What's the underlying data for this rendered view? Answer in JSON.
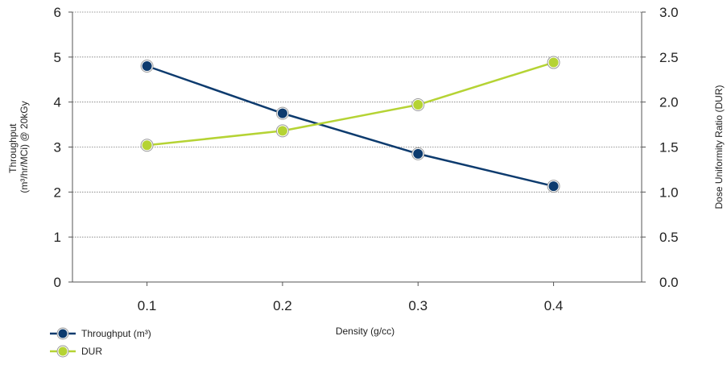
{
  "chart_data": {
    "type": "line",
    "title": "",
    "xlabel": "Density (g/cc)",
    "ylabel": [
      "Throughput",
      "(m³/hr/MCi) @ 20kGy"
    ],
    "y2label": "Dose Uniformity Ratio (DUR)",
    "x": [
      0.1,
      0.2,
      0.3,
      0.4
    ],
    "x_tick_labels": [
      "0.1",
      "0.2",
      "0.3",
      "0.4"
    ],
    "xlim": [
      0.045,
      0.465
    ],
    "ylim": [
      0,
      6
    ],
    "y_ticks": [
      "0",
      "1",
      "2",
      "3",
      "4",
      "5",
      "6"
    ],
    "y2lim": [
      0,
      3
    ],
    "y2_ticks": [
      "0.0",
      "0.5",
      "1.0",
      "1.5",
      "2.0",
      "2.5",
      "3.0"
    ],
    "grid": true,
    "legend_position": "bottom-left",
    "series": [
      {
        "name": "Throughput (m³)",
        "axis": "left",
        "color": "#0d3b6e",
        "values": [
          4.8,
          3.75,
          2.85,
          2.13
        ]
      },
      {
        "name": "DUR",
        "axis": "right",
        "color": "#b5d334",
        "values": [
          1.52,
          1.68,
          1.97,
          2.44
        ]
      }
    ]
  }
}
